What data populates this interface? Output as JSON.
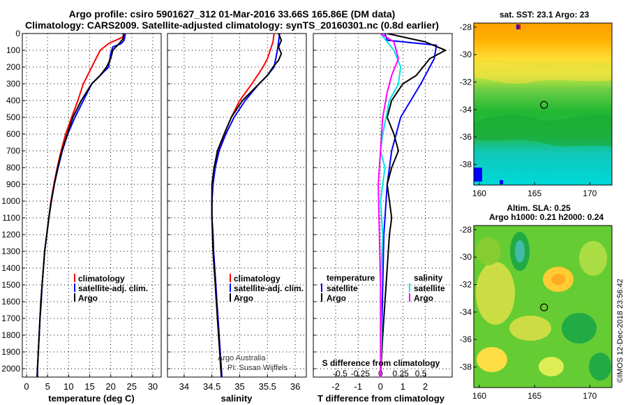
{
  "header": {
    "line1": "Argo profile: csiro 5901627_312 01-Mar-2016 33.66S 165.86E (DM data)",
    "line2": "Climatology: CARS2009. Satellite-adjusted climatology: synTS_20160301.nc (0.8d earlier)"
  },
  "sst_title": "sat. SST: 23.1 Argo: 23",
  "sla_title1": "Altim. SLA: 0.25",
  "sla_title2": "Argo h1000: 0.21 h2000: 0.24",
  "credit_line1": "Argo Australia",
  "credit_line2": "PI: Susan Wijffels",
  "watermark": "©IMOS 12-Dec-2018 23:56:42",
  "colors": {
    "climatology": "#ff0000",
    "satellite": "#0000ff",
    "argo": "#000000",
    "sat_salinity": "#00e5e5",
    "argo_salinity": "#ff00ff"
  },
  "chart_data": [
    {
      "type": "line",
      "xlabel": "temperature (deg C)",
      "xlim": [
        -1,
        32
      ],
      "xticks": [
        0,
        5,
        10,
        15,
        20,
        25,
        30
      ],
      "ylim": [
        2050,
        0
      ],
      "yticks": [
        0,
        100,
        200,
        300,
        400,
        500,
        600,
        700,
        800,
        900,
        1000,
        1100,
        1200,
        1300,
        1400,
        1500,
        1600,
        1700,
        1800,
        1900,
        2000
      ],
      "grid": true,
      "legend": {
        "position": "bottom-center",
        "entries": [
          "climatology",
          "satellite-adj. clim.",
          "Argo"
        ]
      },
      "series": [
        {
          "name": "climatology",
          "color": "#ff0000",
          "points": [
            [
              23.3,
              0
            ],
            [
              23.0,
              20
            ],
            [
              19.5,
              60
            ],
            [
              17.5,
              100
            ],
            [
              16.5,
              150
            ],
            [
              15.5,
              200
            ],
            [
              14.5,
              250
            ],
            [
              13.5,
              300
            ],
            [
              12.2,
              400
            ],
            [
              10.7,
              500
            ],
            [
              9.3,
              600
            ],
            [
              8.2,
              700
            ],
            [
              7.3,
              800
            ],
            [
              6.5,
              900
            ],
            [
              5.8,
              1000
            ],
            [
              5.3,
              1100
            ],
            [
              4.8,
              1200
            ],
            [
              4.3,
              1300
            ],
            [
              4.0,
              1400
            ],
            [
              3.7,
              1500
            ],
            [
              3.5,
              1600
            ],
            [
              3.2,
              1700
            ],
            [
              3.0,
              1800
            ],
            [
              2.8,
              1900
            ],
            [
              2.6,
              2000
            ],
            [
              2.5,
              2050
            ]
          ]
        },
        {
          "name": "satellite-adj. clim.",
          "color": "#0000ff",
          "points": [
            [
              23.5,
              0
            ],
            [
              23.2,
              40
            ],
            [
              22.5,
              60
            ],
            [
              20.5,
              80
            ],
            [
              20.0,
              120
            ],
            [
              19.5,
              200
            ],
            [
              17.5,
              250
            ],
            [
              15.5,
              300
            ],
            [
              13.5,
              400
            ],
            [
              11.5,
              500
            ],
            [
              9.8,
              600
            ],
            [
              8.5,
              700
            ],
            [
              7.5,
              800
            ],
            [
              6.6,
              900
            ],
            [
              5.9,
              1000
            ],
            [
              5.3,
              1100
            ],
            [
              4.8,
              1200
            ],
            [
              4.3,
              1300
            ],
            [
              4.0,
              1400
            ],
            [
              3.7,
              1500
            ],
            [
              3.5,
              1600
            ],
            [
              3.2,
              1700
            ],
            [
              3.0,
              1800
            ],
            [
              2.8,
              1900
            ],
            [
              2.6,
              2000
            ],
            [
              2.5,
              2050
            ]
          ]
        },
        {
          "name": "Argo",
          "color": "#000000",
          "points": [
            [
              23.0,
              0
            ],
            [
              23.0,
              30
            ],
            [
              22.0,
              60
            ],
            [
              20.5,
              100
            ],
            [
              20.0,
              150
            ],
            [
              19.0,
              200
            ],
            [
              17.5,
              250
            ],
            [
              15.5,
              300
            ],
            [
              13.0,
              400
            ],
            [
              11.0,
              500
            ],
            [
              9.7,
              600
            ],
            [
              8.4,
              700
            ],
            [
              7.4,
              800
            ],
            [
              6.6,
              900
            ],
            [
              5.9,
              1000
            ],
            [
              5.3,
              1100
            ],
            [
              4.8,
              1200
            ],
            [
              4.3,
              1300
            ],
            [
              4.0,
              1400
            ],
            [
              3.7,
              1500
            ],
            [
              3.4,
              1600
            ],
            [
              3.2,
              1700
            ],
            [
              3.0,
              1800
            ],
            [
              2.8,
              1900
            ],
            [
              2.6,
              2000
            ],
            [
              2.6,
              2050
            ]
          ]
        }
      ]
    },
    {
      "type": "line",
      "xlabel": "salinity",
      "xlim": [
        33.7,
        36.2
      ],
      "xticks": [
        34,
        34.5,
        35,
        35.5,
        36
      ],
      "xticklabels": [
        "34",
        "34.5",
        "35",
        "35.5",
        "36"
      ],
      "ylim": [
        2050,
        0
      ],
      "grid": true,
      "legend": {
        "position": "bottom-center",
        "entries": [
          "climatology",
          "satellite-adj. clim.",
          "Argo"
        ]
      },
      "series": [
        {
          "name": "climatology",
          "color": "#ff0000",
          "points": [
            [
              35.62,
              0
            ],
            [
              35.6,
              50
            ],
            [
              35.55,
              100
            ],
            [
              35.5,
              150
            ],
            [
              35.42,
              200
            ],
            [
              35.32,
              250
            ],
            [
              35.22,
              300
            ],
            [
              35.0,
              400
            ],
            [
              34.85,
              500
            ],
            [
              34.72,
              600
            ],
            [
              34.62,
              700
            ],
            [
              34.55,
              800
            ],
            [
              34.52,
              900
            ],
            [
              34.5,
              1000
            ],
            [
              34.5,
              1100
            ],
            [
              34.52,
              1200
            ],
            [
              34.53,
              1300
            ],
            [
              34.55,
              1400
            ],
            [
              34.57,
              1500
            ],
            [
              34.59,
              1600
            ],
            [
              34.61,
              1700
            ],
            [
              34.63,
              1800
            ],
            [
              34.65,
              1900
            ],
            [
              34.67,
              2000
            ],
            [
              34.68,
              2050
            ]
          ]
        },
        {
          "name": "satellite-adj. clim.",
          "color": "#0000ff",
          "points": [
            [
              35.72,
              0
            ],
            [
              35.7,
              50
            ],
            [
              35.68,
              100
            ],
            [
              35.65,
              150
            ],
            [
              35.62,
              200
            ],
            [
              35.5,
              250
            ],
            [
              35.35,
              300
            ],
            [
              35.1,
              400
            ],
            [
              34.9,
              500
            ],
            [
              34.75,
              600
            ],
            [
              34.63,
              700
            ],
            [
              34.56,
              800
            ],
            [
              34.52,
              900
            ],
            [
              34.5,
              1000
            ],
            [
              34.5,
              1100
            ],
            [
              34.52,
              1200
            ],
            [
              34.53,
              1300
            ],
            [
              34.55,
              1400
            ],
            [
              34.57,
              1500
            ],
            [
              34.59,
              1600
            ],
            [
              34.61,
              1700
            ],
            [
              34.63,
              1800
            ],
            [
              34.65,
              1900
            ],
            [
              34.67,
              2000
            ],
            [
              34.68,
              2050
            ]
          ]
        },
        {
          "name": "Argo",
          "color": "#000000",
          "points": [
            [
              35.7,
              0
            ],
            [
              35.75,
              40
            ],
            [
              35.7,
              80
            ],
            [
              35.75,
              120
            ],
            [
              35.7,
              160
            ],
            [
              35.6,
              200
            ],
            [
              35.5,
              250
            ],
            [
              35.35,
              300
            ],
            [
              35.05,
              400
            ],
            [
              34.85,
              500
            ],
            [
              34.72,
              600
            ],
            [
              34.6,
              700
            ],
            [
              34.54,
              800
            ],
            [
              34.5,
              900
            ],
            [
              34.5,
              1000
            ],
            [
              34.5,
              1100
            ],
            [
              34.51,
              1200
            ],
            [
              34.52,
              1300
            ],
            [
              34.54,
              1400
            ],
            [
              34.56,
              1500
            ],
            [
              34.58,
              1600
            ],
            [
              34.6,
              1700
            ],
            [
              34.62,
              1800
            ],
            [
              34.64,
              1900
            ],
            [
              34.66,
              2000
            ],
            [
              34.67,
              2050
            ]
          ]
        }
      ]
    },
    {
      "type": "line",
      "xlabel": "T difference from climatology",
      "xlabel_top": "S difference from climatology",
      "xlim": [
        -3,
        3.2
      ],
      "xticks": [
        -2,
        -1,
        0,
        1,
        2
      ],
      "s_tick_labels": [
        {
          "label": "-0.5",
          "at": -1.8
        },
        {
          "label": "-0.25",
          "at": -0.9
        },
        {
          "label": "0",
          "at": 0
        },
        {
          "label": "0.25",
          "at": 0.9
        },
        {
          "label": "0.5",
          "at": 1.8
        }
      ],
      "ylim": [
        2050,
        0
      ],
      "grid": true,
      "legend_left": {
        "title": "temperature",
        "entries": [
          "satellite",
          "Argo"
        ]
      },
      "legend_right": {
        "title": "salinity",
        "entries": [
          "satellite",
          "Argo"
        ]
      },
      "series": [
        {
          "name": "satellite",
          "group": "temperature",
          "color": "#0000ff",
          "points": [
            [
              0.2,
              0
            ],
            [
              0.3,
              40
            ],
            [
              2.5,
              70
            ],
            [
              2.4,
              150
            ],
            [
              1.8,
              300
            ],
            [
              0.9,
              500
            ],
            [
              0.5,
              700
            ],
            [
              0.3,
              900
            ],
            [
              0.15,
              1200
            ],
            [
              0.1,
              1500
            ],
            [
              0.05,
              1800
            ],
            [
              0.0,
              2050
            ]
          ]
        },
        {
          "name": "Argo",
          "group": "temperature",
          "color": "#000000",
          "points": [
            [
              0.3,
              0
            ],
            [
              2.0,
              50
            ],
            [
              2.9,
              100
            ],
            [
              2.2,
              150
            ],
            [
              1.9,
              200
            ],
            [
              1.6,
              250
            ],
            [
              1.0,
              300
            ],
            [
              0.5,
              400
            ],
            [
              0.3,
              500
            ],
            [
              0.6,
              600
            ],
            [
              0.8,
              700
            ],
            [
              0.5,
              800
            ],
            [
              0.3,
              900
            ],
            [
              0.4,
              1000
            ],
            [
              0.5,
              1100
            ],
            [
              0.4,
              1200
            ],
            [
              0.3,
              1400
            ],
            [
              0.2,
              1600
            ],
            [
              0.1,
              1800
            ],
            [
              0.0,
              2050
            ]
          ]
        },
        {
          "name": "satellite",
          "group": "salinity",
          "color": "#00e5e5",
          "points": [
            [
              0.0,
              0
            ],
            [
              0.3,
              50
            ],
            [
              0.6,
              100
            ],
            [
              0.9,
              200
            ],
            [
              0.8,
              300
            ],
            [
              0.4,
              400
            ],
            [
              0.25,
              500
            ],
            [
              0.1,
              600
            ],
            [
              0.0,
              700
            ],
            [
              0.2,
              800
            ],
            [
              0.0,
              1000
            ],
            [
              0.1,
              1200
            ],
            [
              0.0,
              1500
            ],
            [
              0.05,
              1800
            ],
            [
              0.0,
              2050
            ]
          ]
        },
        {
          "name": "Argo",
          "group": "salinity",
          "color": "#ff00ff",
          "points": [
            [
              0.0,
              0
            ],
            [
              0.6,
              50
            ],
            [
              0.8,
              150
            ],
            [
              0.5,
              250
            ],
            [
              0.3,
              350
            ],
            [
              0.1,
              500
            ],
            [
              0.0,
              700
            ],
            [
              -0.1,
              900
            ],
            [
              -0.05,
              1200
            ],
            [
              0.0,
              1500
            ],
            [
              0.0,
              2050
            ]
          ]
        }
      ]
    },
    {
      "type": "heatmap",
      "title": "sat. SST: 23.1 Argo: 23",
      "xlim": [
        159.5,
        172
      ],
      "xticks": [
        160,
        165,
        170
      ],
      "ylim": [
        -39.5,
        -27.7
      ],
      "yticks": [
        -28,
        -30,
        -32,
        -34,
        -36,
        -38
      ],
      "marker": {
        "lon": 165.86,
        "lat": -33.66
      }
    },
    {
      "type": "heatmap",
      "title": "Altim. SLA: 0.25",
      "xlim": [
        159.5,
        172
      ],
      "xticks": [
        160,
        165,
        170
      ],
      "ylim": [
        -39.5,
        -27.7
      ],
      "yticks": [
        -28,
        -30,
        -32,
        -34,
        -36,
        -38
      ],
      "marker": {
        "lon": 165.86,
        "lat": -33.66
      }
    }
  ]
}
